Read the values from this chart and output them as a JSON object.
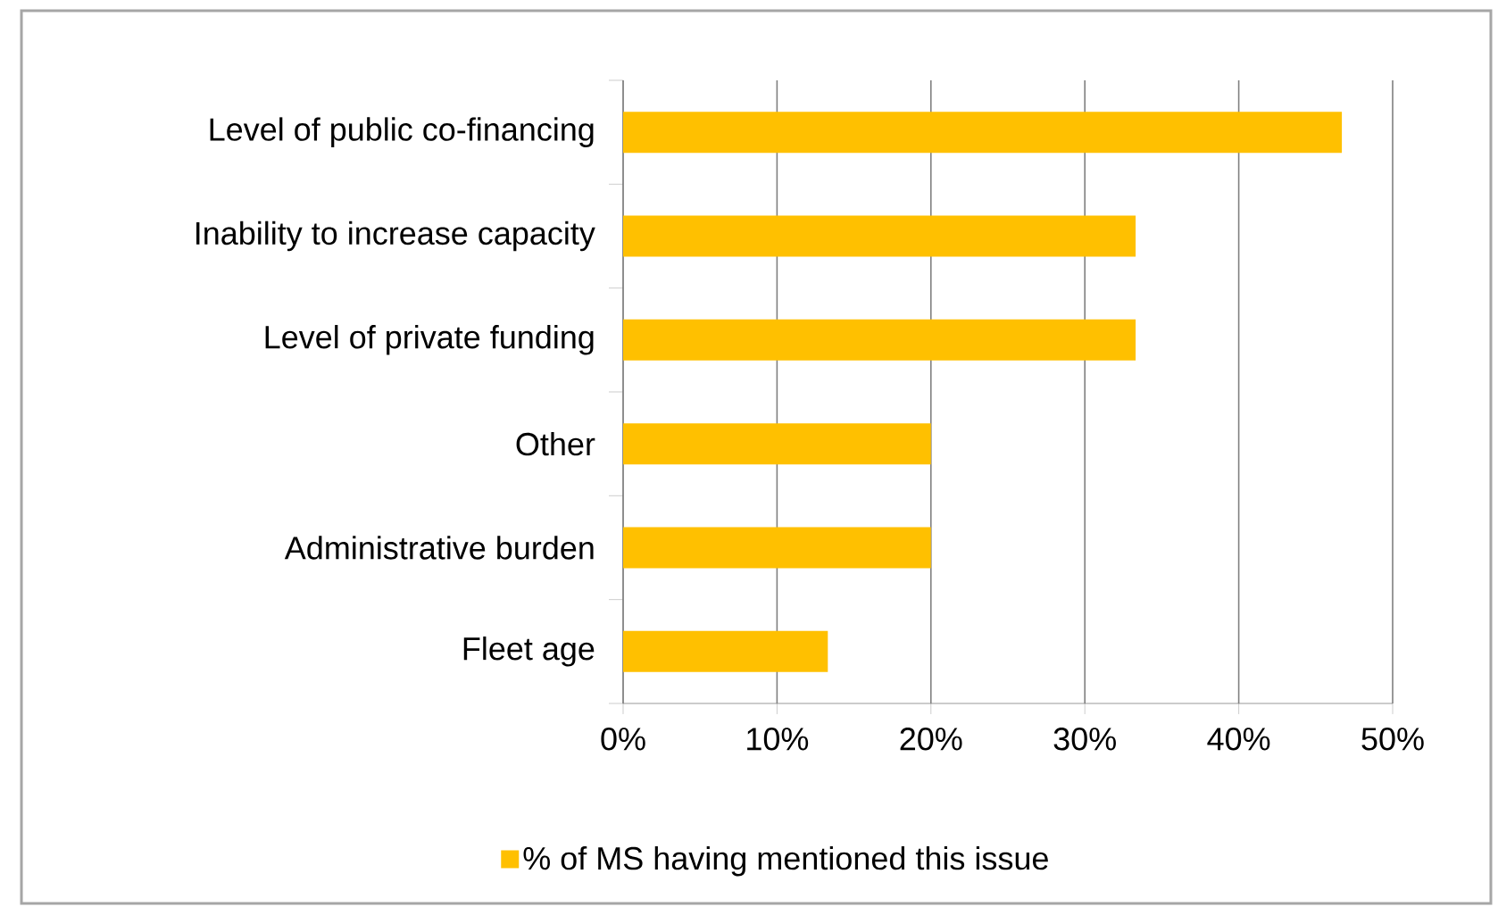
{
  "chart_data": {
    "type": "bar",
    "orientation": "horizontal",
    "categories": [
      "Level of public co-financing",
      "Inability to increase capacity",
      "Level of private funding",
      "Other",
      "Administrative burden",
      "Fleet age"
    ],
    "series": [
      {
        "name": "% of MS having mentioned this issue",
        "color": "#ffc000",
        "values": [
          46.7,
          33.3,
          33.3,
          20,
          20,
          13.3
        ]
      }
    ],
    "xlim": [
      0,
      50
    ],
    "xticks": [
      {
        "value": 0,
        "label": "0%"
      },
      {
        "value": 10,
        "label": "10%"
      },
      {
        "value": 20,
        "label": "20%"
      },
      {
        "value": 30,
        "label": "30%"
      },
      {
        "value": 40,
        "label": "40%"
      },
      {
        "value": 50,
        "label": "50%"
      }
    ],
    "grid": "x",
    "legend": "bottom"
  }
}
